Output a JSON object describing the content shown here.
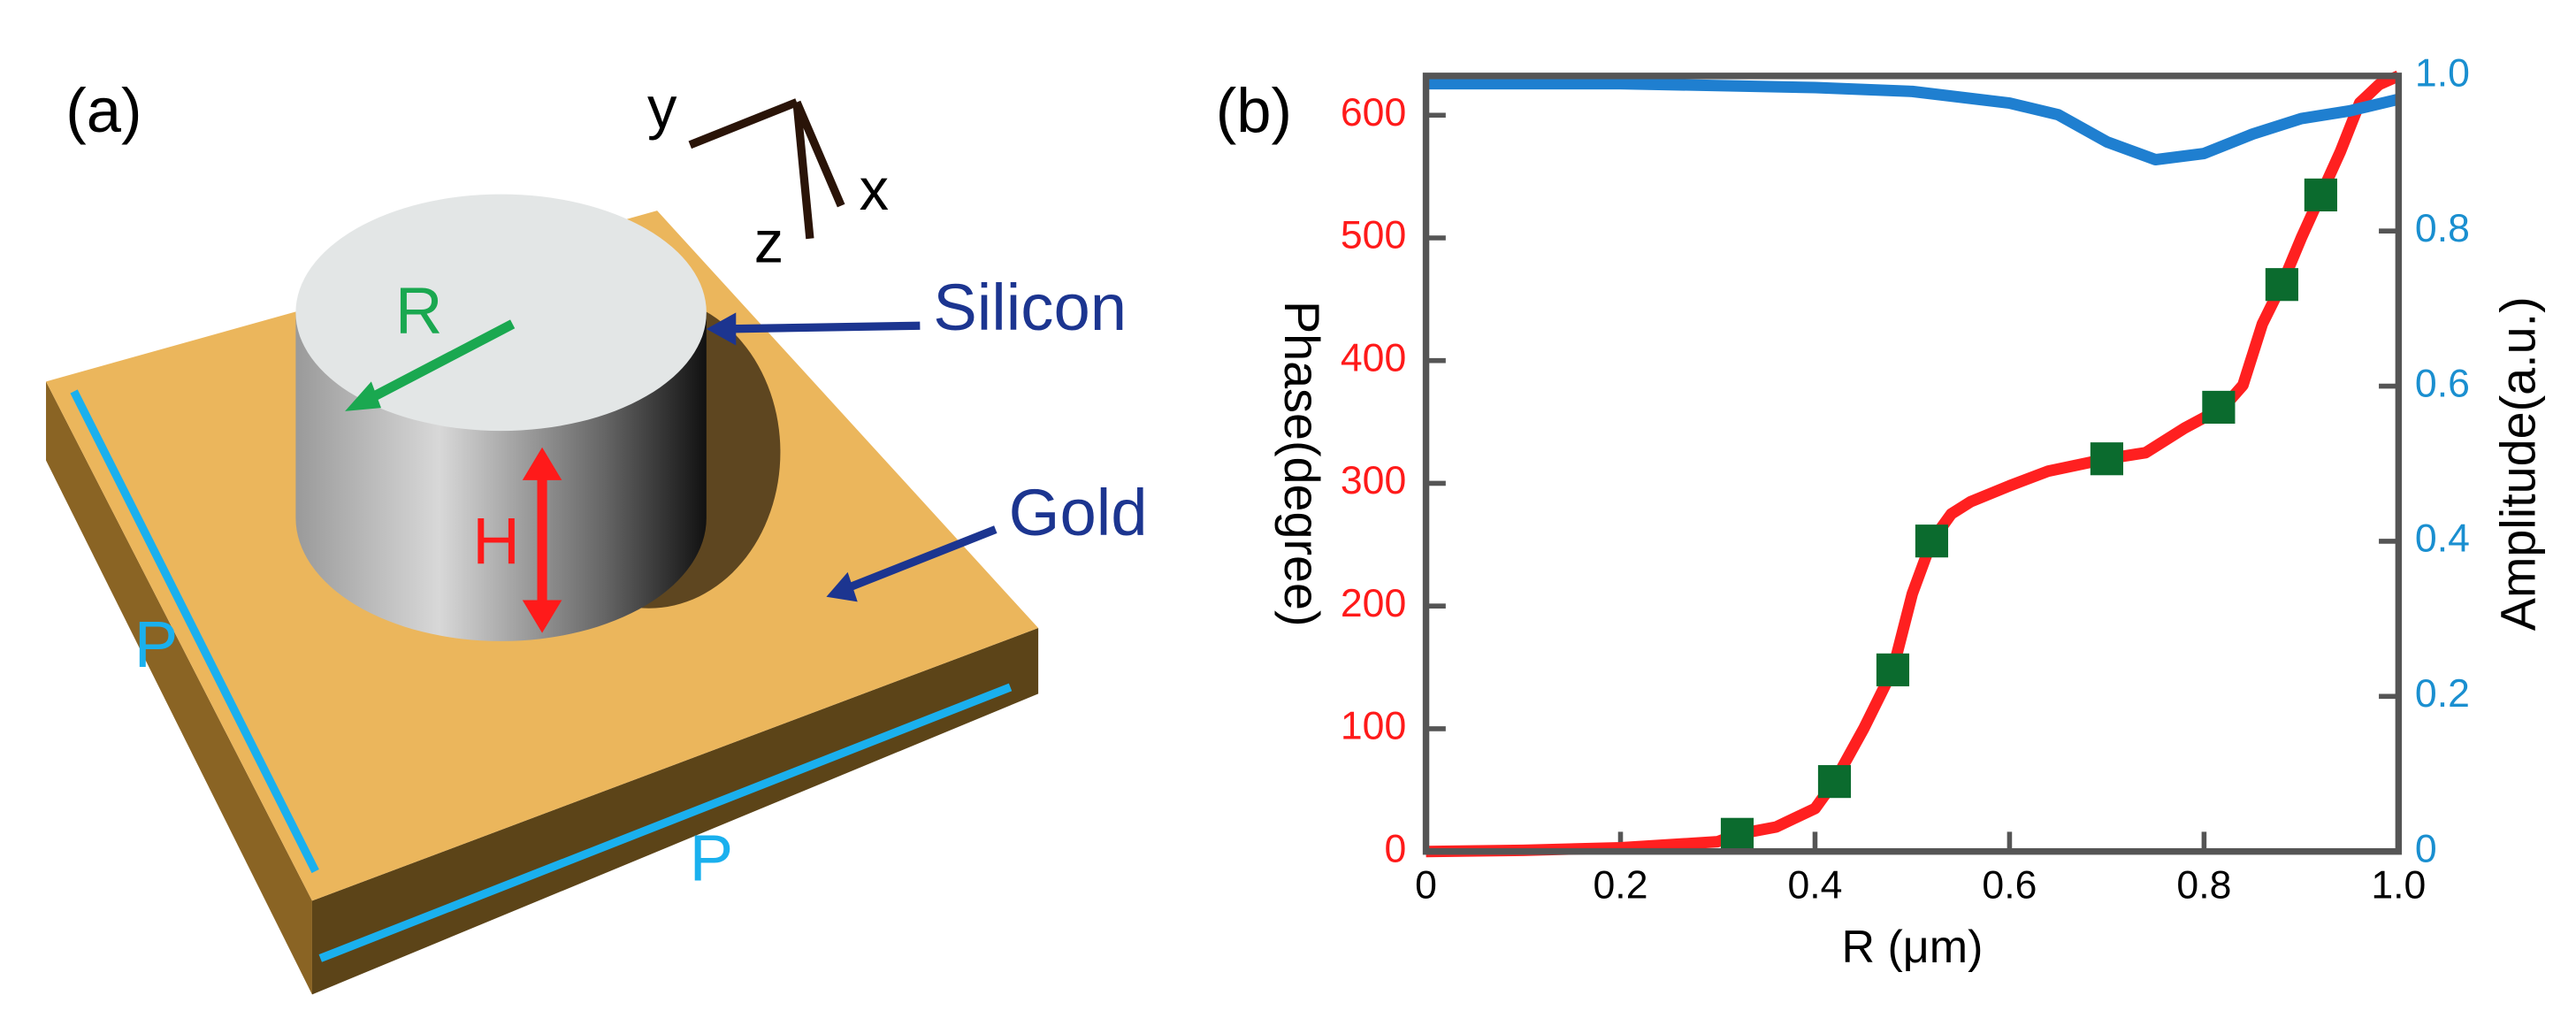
{
  "diagram": {
    "label": "(a)",
    "axes": {
      "y": "y",
      "x": "x",
      "z": "z"
    },
    "radius": "R",
    "height": "H",
    "period_left": "P",
    "period_bottom": "P",
    "silicon": "Silicon",
    "gold": "Gold"
  },
  "chart_data": {
    "type": "line",
    "label": "(b)",
    "xlabel": "R (μm)",
    "ylabel": "Phase(degree)",
    "y2label": "Amplitude(a.u.)",
    "xlim": [
      0,
      1
    ],
    "xticks": [
      0,
      0.2,
      0.4,
      0.6,
      0.8,
      {
        "value": 1,
        "label": "1.0"
      }
    ],
    "ylim": [
      0,
      632
    ],
    "yticks": [
      0,
      100,
      200,
      300,
      400,
      500,
      600
    ],
    "y2lim": [
      0,
      1
    ],
    "y2ticks": [
      0,
      0.2,
      0.4,
      0.6,
      0.8,
      {
        "value": 1,
        "label": "1.0"
      }
    ],
    "ylabel_color": "#ff1a1a",
    "y2tick_color": "#1a8fd0",
    "series": [
      {
        "color": "#ff2020",
        "x": [
          0,
          0.1,
          0.2,
          0.3,
          0.32,
          0.36,
          0.4,
          0.42,
          0.45,
          0.48,
          0.5,
          0.52,
          0.54,
          0.56,
          0.6,
          0.64,
          0.7,
          0.74,
          0.78,
          0.82,
          0.84,
          0.86,
          0.88,
          0.9,
          0.92,
          0.94,
          0.96,
          0.98,
          1.0
        ],
        "values": [
          0,
          1,
          3,
          8,
          14,
          20,
          35,
          57,
          100,
          148,
          210,
          253,
          275,
          285,
          298,
          310,
          320,
          325,
          345,
          362,
          380,
          430,
          462,
          500,
          535,
          570,
          610,
          625,
          632
        ]
      },
      {
        "color": "#1f7fd0",
        "axis": "y2",
        "x": [
          0,
          0.2,
          0.4,
          0.5,
          0.6,
          0.65,
          0.7,
          0.75,
          0.8,
          0.85,
          0.9,
          0.95,
          1.0
        ],
        "values": [
          0.99,
          0.99,
          0.985,
          0.98,
          0.965,
          0.95,
          0.915,
          0.892,
          0.9,
          0.925,
          0.945,
          0.955,
          0.97
        ]
      }
    ],
    "markers": {
      "color": "#0b6b2e",
      "x": [
        0.32,
        0.42,
        0.48,
        0.52,
        0.7,
        0.815,
        0.88,
        0.92
      ],
      "values": [
        14,
        57,
        148,
        253,
        320,
        362,
        462,
        535
      ]
    }
  }
}
